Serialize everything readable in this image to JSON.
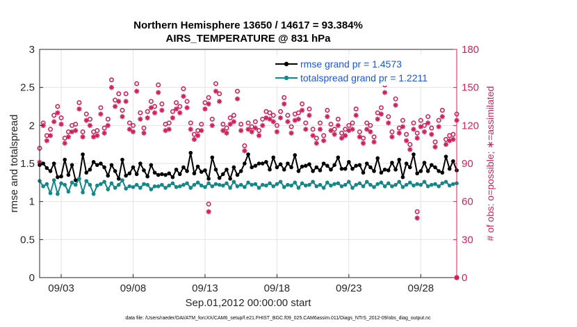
{
  "chart_data": {
    "type": "line",
    "title": "Northern Hemisphere 13650 / 14617 = 93.384%",
    "subtitle": "AIRS_TEMPERATURE @ 831 hPa",
    "xlabel": "Sep.01,2012 00:00:00 start",
    "ylabel_left": "rmse and totalspread",
    "ylabel_right": "# of obs: o=possible; ∗=assimilated",
    "ylim_left": [
      0,
      3
    ],
    "ylim_right": [
      0,
      180
    ],
    "x_range_days": [
      1.5,
      30.5
    ],
    "x_tick_days": [
      3,
      8,
      13,
      18,
      23,
      28
    ],
    "x_tick_labels": [
      "09/03",
      "09/08",
      "09/13",
      "09/18",
      "09/23",
      "09/28"
    ],
    "y_ticks_left": [
      "0",
      "0.5",
      "1",
      "1.5",
      "2",
      "2.5",
      "3"
    ],
    "y_ticks_right": [
      "0",
      "30",
      "60",
      "90",
      "120",
      "150",
      "180"
    ],
    "grid": true,
    "legend_position": "top-right",
    "series": [
      {
        "name": "rmse grand pr = 1.4573",
        "color": "#000000",
        "marker": "dot",
        "x_start_day": 1.5,
        "x_step_day": 0.25,
        "values": [
          1.48,
          1.5,
          1.44,
          1.4,
          1.5,
          1.32,
          1.33,
          1.55,
          1.35,
          1.48,
          1.28,
          1.3,
          1.62,
          1.38,
          1.42,
          1.52,
          1.48,
          1.5,
          1.45,
          1.34,
          1.48,
          1.4,
          1.3,
          1.55,
          1.34,
          1.37,
          1.45,
          1.36,
          1.5,
          1.41,
          1.33,
          1.48,
          1.38,
          1.35,
          1.36,
          1.35,
          1.37,
          1.32,
          1.42,
          1.36,
          1.45,
          1.4,
          1.64,
          1.37,
          1.46,
          1.39,
          1.41,
          1.3,
          1.58,
          1.42,
          1.31,
          1.36,
          1.42,
          1.3,
          1.45,
          1.35,
          1.4,
          1.5,
          1.62,
          1.45,
          1.47,
          1.5,
          1.5,
          1.52,
          1.42,
          1.58,
          1.45,
          1.49,
          1.42,
          1.5,
          1.45,
          1.61,
          1.4,
          1.46,
          1.47,
          1.49,
          1.4,
          1.45,
          1.41,
          1.5,
          1.47,
          1.42,
          1.48,
          1.58,
          1.43,
          1.43,
          1.52,
          1.43,
          1.47,
          1.48,
          1.38,
          1.5,
          1.45,
          1.4,
          1.57,
          1.38,
          1.42,
          1.41,
          1.51,
          1.42,
          1.55,
          1.32,
          1.5,
          1.45,
          1.62,
          1.37,
          1.4,
          1.51,
          1.4,
          1.48,
          1.45,
          1.4,
          1.38,
          1.59,
          1.43,
          1.53,
          1.41,
          1.35
        ],
        "source_note": "approximate, read from plot"
      },
      {
        "name": "totalspread grand pr = 1.2211",
        "color": "#13878a",
        "marker": "dot",
        "x_start_day": 1.5,
        "x_step_day": 0.25,
        "values": [
          1.27,
          1.2,
          1.23,
          1.11,
          1.28,
          1.1,
          1.24,
          1.22,
          1.13,
          1.25,
          1.22,
          1.3,
          1.12,
          1.27,
          1.22,
          1.1,
          1.21,
          1.23,
          1.26,
          1.16,
          1.24,
          1.18,
          1.22,
          1.28,
          1.17,
          1.2,
          1.19,
          1.22,
          1.18,
          1.23,
          1.22,
          1.16,
          1.2,
          1.2,
          1.22,
          1.18,
          1.21,
          1.24,
          1.19,
          1.2,
          1.22,
          1.24,
          1.18,
          1.22,
          1.25,
          1.21,
          1.19,
          1.24,
          1.2,
          1.23,
          1.22,
          1.21,
          1.24,
          1.18,
          1.26,
          1.2,
          1.22,
          1.19,
          1.25,
          1.22,
          1.23,
          1.18,
          1.22,
          1.21,
          1.24,
          1.2,
          1.23,
          1.26,
          1.19,
          1.22,
          1.21,
          1.25,
          1.18,
          1.24,
          1.21,
          1.22,
          1.26,
          1.2,
          1.22,
          1.18,
          1.25,
          1.21,
          1.23,
          1.24,
          1.2,
          1.22,
          1.26,
          1.18,
          1.22,
          1.24,
          1.2,
          1.26,
          1.22,
          1.19,
          1.23,
          1.25,
          1.2,
          1.24,
          1.2,
          1.22,
          1.26,
          1.19,
          1.22,
          1.25,
          1.21,
          1.23,
          1.22,
          1.26,
          1.2,
          1.22,
          1.23,
          1.2,
          1.24,
          1.26,
          1.21,
          1.23,
          1.24,
          1.22
        ],
        "source_note": "approximate, read from plot"
      }
    ],
    "obs_possible": {
      "name": "# obs possible",
      "color": "#d0215a",
      "marker": "circle",
      "x_start_day": 1.5,
      "x_step_day": 0.25,
      "values": [
        102,
        122,
        112,
        117,
        128,
        135,
        126,
        110,
        115,
        120,
        121,
        138,
        115,
        129,
        125,
        115,
        116,
        134,
        118,
        125,
        156,
        140,
        145,
        132,
        145,
        122,
        120,
        153,
        130,
        118,
        131,
        139,
        135,
        152,
        137,
        121,
        122,
        131,
        138,
        135,
        149,
        139,
        122,
        113,
        116,
        121,
        138,
        142,
        125,
        153,
        145,
        121,
        118,
        126,
        128,
        147,
        121,
        104,
        122,
        119,
        123,
        116,
        125,
        131,
        130,
        128,
        120,
        131,
        142,
        128,
        119,
        129,
        130,
        137,
        122,
        133,
        117,
        110,
        122,
        112,
        132,
        121,
        117,
        125,
        114,
        117,
        120,
        122,
        133,
        115,
        110,
        122,
        120,
        111,
        130,
        134,
        152,
        127,
        115,
        141,
        118,
        124,
        113,
        105,
        122,
        114,
        124,
        120,
        127,
        118,
        107,
        124,
        132,
        109,
        112,
        113,
        129,
        118,
        117,
        108
      ],
      "source_note": "approximate, read from plot"
    },
    "obs_assimilated": {
      "name": "# obs assimilated",
      "color": "#d0215a",
      "marker": "asterisk",
      "x_start_day": 1.5,
      "x_step_day": 0.25,
      "values": [
        91,
        120,
        108,
        112,
        123,
        130,
        121,
        106,
        111,
        115,
        116,
        133,
        111,
        124,
        120,
        111,
        112,
        129,
        114,
        120,
        150,
        135,
        139,
        127,
        139,
        117,
        115,
        147,
        125,
        114,
        126,
        134,
        130,
        146,
        132,
        116,
        117,
        126,
        133,
        130,
        143,
        134,
        117,
        109,
        112,
        116,
        133,
        137,
        120,
        147,
        139,
        116,
        114,
        121,
        123,
        141,
        116,
        100,
        117,
        115,
        118,
        112,
        120,
        126,
        125,
        123,
        115,
        126,
        137,
        123,
        114,
        124,
        125,
        132,
        117,
        128,
        112,
        106,
        117,
        108,
        127,
        116,
        113,
        120,
        110,
        112,
        116,
        117,
        128,
        111,
        106,
        117,
        115,
        107,
        125,
        129,
        146,
        122,
        111,
        136,
        114,
        119,
        108,
        101,
        117,
        110,
        119,
        115,
        122,
        113,
        103,
        119,
        127,
        105,
        108,
        109,
        124,
        113,
        112,
        104
      ],
      "source_note": "approximate, read from plot"
    },
    "obs_outliers": [
      {
        "day": 13.25,
        "possible": 58,
        "assimilated": 52
      },
      {
        "day": 27.75,
        "possible": 52,
        "assimilated": 47
      },
      {
        "day": 30.5,
        "possible": 0,
        "assimilated": 0
      }
    ]
  },
  "legend": {
    "rmse_label": "rmse grand pr = 1.4573",
    "spread_label": "totalspread grand pr = 1.2211"
  },
  "footer": {
    "text": "data file: /Users/raeder/DAI/ATM_forcXX/CAM6_setup/f.e21.FHIST_BGC.f09_025.CAM6assim.011/Diags_NTrS_2012-09/obs_diag_output.nc"
  }
}
